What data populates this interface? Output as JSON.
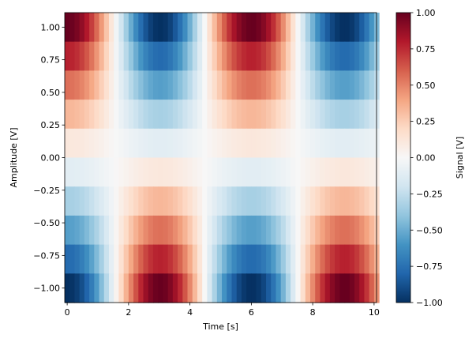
{
  "chart_data": {
    "type": "heatmap",
    "xlabel": "Time [s]",
    "ylabel": "Amplitude [V]",
    "colorbar_label": "Signal [V]",
    "colormap": "RdBu_r",
    "colormap_stops": [
      "#053061",
      "#2166ac",
      "#4393c3",
      "#92c5de",
      "#d1e5f0",
      "#f7f7f7",
      "#fddbc7",
      "#f4a582",
      "#d6604d",
      "#b2182b",
      "#67001f"
    ],
    "xlim": [
      -0.08,
      10.08
    ],
    "ylim": [
      -1.1111,
      1.1111
    ],
    "clim": [
      -1.0,
      1.0
    ],
    "x_ticks": [
      {
        "value": 0,
        "label": "0"
      },
      {
        "value": 2,
        "label": "2"
      },
      {
        "value": 4,
        "label": "4"
      },
      {
        "value": 6,
        "label": "6"
      },
      {
        "value": 8,
        "label": "8"
      },
      {
        "value": 10,
        "label": "10"
      }
    ],
    "y_ticks": [
      {
        "value": 1.0,
        "label": "1.00"
      },
      {
        "value": 0.75,
        "label": "0.75"
      },
      {
        "value": 0.5,
        "label": "0.50"
      },
      {
        "value": 0.25,
        "label": "0.25"
      },
      {
        "value": 0.0,
        "label": "0.00"
      },
      {
        "value": -0.25,
        "label": "−0.25"
      },
      {
        "value": -0.5,
        "label": "−0.50"
      },
      {
        "value": -0.75,
        "label": "−0.75"
      },
      {
        "value": -1.0,
        "label": "−1.00"
      }
    ],
    "colorbar_ticks": [
      {
        "value": 1.0,
        "label": "1.00"
      },
      {
        "value": 0.75,
        "label": "0.75"
      },
      {
        "value": 0.5,
        "label": "0.50"
      },
      {
        "value": 0.25,
        "label": "0.25"
      },
      {
        "value": 0.0,
        "label": "0.00"
      },
      {
        "value": -0.25,
        "label": "−0.25"
      },
      {
        "value": -0.5,
        "label": "−0.50"
      },
      {
        "value": -0.75,
        "label": "−0.75"
      },
      {
        "value": -1.0,
        "label": "−1.00"
      }
    ],
    "x_values": [
      0,
      0.16,
      0.32,
      0.48,
      0.64,
      0.8,
      0.96,
      1.12,
      1.28,
      1.44,
      1.6,
      1.76,
      1.92,
      2.08,
      2.24,
      2.4,
      2.56,
      2.72,
      2.88,
      3.04,
      3.2,
      3.36,
      3.52,
      3.68,
      3.84,
      4.0,
      4.16,
      4.32,
      4.48,
      4.64,
      4.8,
      4.96,
      5.12,
      5.28,
      5.44,
      5.6,
      5.76,
      5.92,
      6.08,
      6.24,
      6.4,
      6.56,
      6.72,
      6.88,
      7.04,
      7.2,
      7.36,
      7.52,
      7.68,
      7.84,
      8.0,
      8.16,
      8.32,
      8.48,
      8.64,
      8.8,
      8.96,
      9.12,
      9.28,
      9.44,
      9.6,
      9.76,
      9.92,
      10.08
    ],
    "y_values": [
      1.0,
      0.7778,
      0.5556,
      0.3333,
      0.1111,
      -0.1111,
      -0.3333,
      -0.5556,
      -0.7778,
      -1.0
    ],
    "z": [
      [
        1.0,
        0.987,
        0.949,
        0.887,
        0.802,
        0.697,
        0.573,
        0.433,
        0.283,
        0.124,
        -0.037,
        -0.198,
        -0.353,
        -0.501,
        -0.639,
        -0.763,
        -0.863,
        -0.939,
        -0.985,
        -0.998,
        -0.981,
        -0.932,
        -0.852,
        -0.752,
        -0.629,
        -0.488,
        -0.331,
        -0.169,
        -0.003,
        0.163,
        0.32,
        0.468,
        0.604,
        0.726,
        0.83,
        0.91,
        0.966,
        0.995,
        0.996,
        0.971,
        0.918,
        0.838,
        0.736,
        0.613,
        0.472,
        0.315,
        0.153,
        -0.01,
        -0.172,
        -0.329,
        -0.477,
        -0.613,
        -0.734,
        -0.835,
        -0.914,
        -0.968,
        -0.996,
        -0.996,
        -0.967,
        -0.911,
        -0.827,
        -0.724,
        -0.598,
        -0.457
      ],
      [
        0.778,
        0.768,
        0.738,
        0.69,
        0.624,
        0.542,
        0.446,
        0.337,
        0.22,
        0.096,
        -0.029,
        -0.154,
        -0.275,
        -0.39,
        -0.497,
        -0.593,
        -0.671,
        -0.73,
        -0.766,
        -0.776,
        -0.763,
        -0.725,
        -0.663,
        -0.585,
        -0.489,
        -0.38,
        -0.257,
        -0.131,
        -0.002,
        0.127,
        0.249,
        0.364,
        0.47,
        0.565,
        0.646,
        0.708,
        0.751,
        0.774,
        0.775,
        0.755,
        0.714,
        0.652,
        0.572,
        0.477,
        0.367,
        0.245,
        0.119,
        -0.008,
        -0.134,
        -0.256,
        -0.371,
        -0.477,
        -0.571,
        -0.65,
        -0.711,
        -0.753,
        -0.775,
        -0.775,
        -0.752,
        -0.709,
        -0.643,
        -0.563,
        -0.465,
        -0.355
      ],
      [
        0.556,
        0.548,
        0.527,
        0.493,
        0.446,
        0.387,
        0.318,
        0.241,
        0.157,
        0.069,
        -0.021,
        -0.11,
        -0.196,
        -0.278,
        -0.355,
        -0.424,
        -0.479,
        -0.522,
        -0.547,
        -0.554,
        -0.545,
        -0.518,
        -0.473,
        -0.418,
        -0.349,
        -0.271,
        -0.184,
        -0.094,
        -0.002,
        0.091,
        0.178,
        0.26,
        0.336,
        0.403,
        0.461,
        0.506,
        0.537,
        0.553,
        0.553,
        0.539,
        0.51,
        0.466,
        0.409,
        0.341,
        0.262,
        0.175,
        0.085,
        -0.006,
        -0.096,
        -0.183,
        -0.265,
        -0.341,
        -0.408,
        -0.464,
        -0.508,
        -0.538,
        -0.553,
        -0.553,
        -0.537,
        -0.506,
        -0.459,
        -0.402,
        -0.332,
        -0.254
      ],
      [
        0.333,
        0.329,
        0.316,
        0.296,
        0.267,
        0.232,
        0.191,
        0.144,
        0.094,
        0.041,
        -0.012,
        -0.066,
        -0.118,
        -0.167,
        -0.213,
        -0.254,
        -0.288,
        -0.313,
        -0.328,
        -0.333,
        -0.327,
        -0.311,
        -0.284,
        -0.251,
        -0.21,
        -0.163,
        -0.11,
        -0.056,
        -0.001,
        0.054,
        0.107,
        0.156,
        0.201,
        0.242,
        0.277,
        0.303,
        0.322,
        0.332,
        0.332,
        0.324,
        0.306,
        0.279,
        0.245,
        0.204,
        0.157,
        0.105,
        0.051,
        -0.003,
        -0.057,
        -0.11,
        -0.159,
        -0.204,
        -0.245,
        -0.278,
        -0.305,
        -0.323,
        -0.332,
        -0.332,
        -0.322,
        -0.304,
        -0.276,
        -0.241,
        -0.199,
        -0.152
      ],
      [
        0.111,
        0.11,
        0.105,
        0.099,
        0.089,
        0.077,
        0.064,
        0.048,
        0.031,
        0.014,
        -0.004,
        -0.022,
        -0.039,
        -0.056,
        -0.071,
        -0.085,
        -0.096,
        -0.104,
        -0.109,
        -0.111,
        -0.109,
        -0.104,
        -0.095,
        -0.084,
        -0.07,
        -0.054,
        -0.037,
        -0.019,
        0.0,
        0.018,
        0.036,
        0.052,
        0.067,
        0.081,
        0.092,
        0.101,
        0.107,
        0.111,
        0.111,
        0.108,
        0.102,
        0.093,
        0.082,
        0.068,
        0.052,
        0.035,
        0.017,
        -0.001,
        -0.019,
        -0.037,
        -0.053,
        -0.068,
        -0.082,
        -0.093,
        -0.102,
        -0.108,
        -0.111,
        -0.111,
        -0.107,
        -0.101,
        -0.092,
        -0.08,
        -0.066,
        -0.051
      ],
      [
        -0.111,
        -0.11,
        -0.105,
        -0.099,
        -0.089,
        -0.077,
        -0.064,
        -0.048,
        -0.031,
        -0.014,
        0.004,
        0.022,
        0.039,
        0.056,
        0.071,
        0.085,
        0.096,
        0.104,
        0.109,
        0.111,
        0.109,
        0.104,
        0.095,
        0.084,
        0.07,
        0.054,
        0.037,
        0.019,
        0.0,
        -0.018,
        -0.036,
        -0.052,
        -0.067,
        -0.081,
        -0.092,
        -0.101,
        -0.107,
        -0.111,
        -0.111,
        -0.108,
        -0.102,
        -0.093,
        -0.082,
        -0.068,
        -0.052,
        -0.035,
        -0.017,
        0.001,
        0.019,
        0.037,
        0.053,
        0.068,
        0.082,
        0.093,
        0.102,
        0.108,
        0.111,
        0.111,
        0.107,
        0.101,
        0.092,
        0.08,
        0.066,
        0.051
      ],
      [
        -0.333,
        -0.329,
        -0.316,
        -0.296,
        -0.267,
        -0.232,
        -0.191,
        -0.144,
        -0.094,
        -0.041,
        0.012,
        0.066,
        0.118,
        0.167,
        0.213,
        0.254,
        0.288,
        0.313,
        0.328,
        0.333,
        0.327,
        0.311,
        0.284,
        0.251,
        0.21,
        0.163,
        0.11,
        0.056,
        0.001,
        -0.054,
        -0.107,
        -0.156,
        -0.201,
        -0.242,
        -0.277,
        -0.303,
        -0.322,
        -0.332,
        -0.332,
        -0.324,
        -0.306,
        -0.279,
        -0.245,
        -0.204,
        -0.157,
        -0.105,
        -0.051,
        0.003,
        0.057,
        0.11,
        0.159,
        0.204,
        0.245,
        0.278,
        0.305,
        0.323,
        0.332,
        0.332,
        0.322,
        0.304,
        0.276,
        0.241,
        0.199,
        0.152
      ],
      [
        -0.556,
        -0.548,
        -0.527,
        -0.493,
        -0.446,
        -0.387,
        -0.318,
        -0.241,
        -0.157,
        -0.069,
        0.021,
        0.11,
        0.196,
        0.278,
        0.355,
        0.424,
        0.479,
        0.522,
        0.547,
        0.554,
        0.545,
        0.518,
        0.473,
        0.418,
        0.349,
        0.271,
        0.184,
        0.094,
        0.002,
        -0.091,
        -0.178,
        -0.26,
        -0.336,
        -0.403,
        -0.461,
        -0.506,
        -0.537,
        -0.553,
        -0.553,
        -0.539,
        -0.51,
        -0.466,
        -0.409,
        -0.341,
        -0.262,
        -0.175,
        -0.085,
        0.006,
        0.096,
        0.183,
        0.265,
        0.341,
        0.408,
        0.464,
        0.508,
        0.538,
        0.553,
        0.553,
        0.537,
        0.506,
        0.459,
        0.402,
        0.332,
        0.254
      ],
      [
        -0.778,
        -0.768,
        -0.738,
        -0.69,
        -0.624,
        -0.542,
        -0.446,
        -0.337,
        -0.22,
        -0.096,
        0.029,
        0.154,
        0.275,
        0.39,
        0.497,
        0.593,
        0.671,
        0.73,
        0.766,
        0.776,
        0.763,
        0.725,
        0.663,
        0.585,
        0.489,
        0.38,
        0.257,
        0.131,
        0.002,
        -0.127,
        -0.249,
        -0.364,
        -0.47,
        -0.565,
        -0.646,
        -0.708,
        -0.751,
        -0.774,
        -0.775,
        -0.755,
        -0.714,
        -0.652,
        -0.572,
        -0.477,
        -0.367,
        -0.245,
        -0.119,
        0.008,
        0.134,
        0.256,
        0.371,
        0.477,
        0.571,
        0.65,
        0.711,
        0.753,
        0.775,
        0.775,
        0.752,
        0.709,
        0.643,
        0.563,
        0.465,
        0.355
      ],
      [
        -1.0,
        -0.987,
        -0.949,
        -0.887,
        -0.802,
        -0.697,
        -0.573,
        -0.433,
        -0.283,
        -0.124,
        0.037,
        0.198,
        0.353,
        0.501,
        0.639,
        0.763,
        0.863,
        0.939,
        0.985,
        0.998,
        0.981,
        0.932,
        0.852,
        0.752,
        0.629,
        0.488,
        0.331,
        0.169,
        0.003,
        -0.163,
        -0.32,
        -0.468,
        -0.604,
        -0.726,
        -0.83,
        -0.91,
        -0.966,
        -0.995,
        -0.996,
        -0.971,
        -0.918,
        -0.838,
        -0.736,
        -0.613,
        -0.472,
        -0.315,
        -0.153,
        0.01,
        0.172,
        0.329,
        0.477,
        0.613,
        0.734,
        0.835,
        0.914,
        0.968,
        0.996,
        0.996,
        0.967,
        0.911,
        0.827,
        0.724,
        0.598,
        0.457
      ]
    ]
  }
}
